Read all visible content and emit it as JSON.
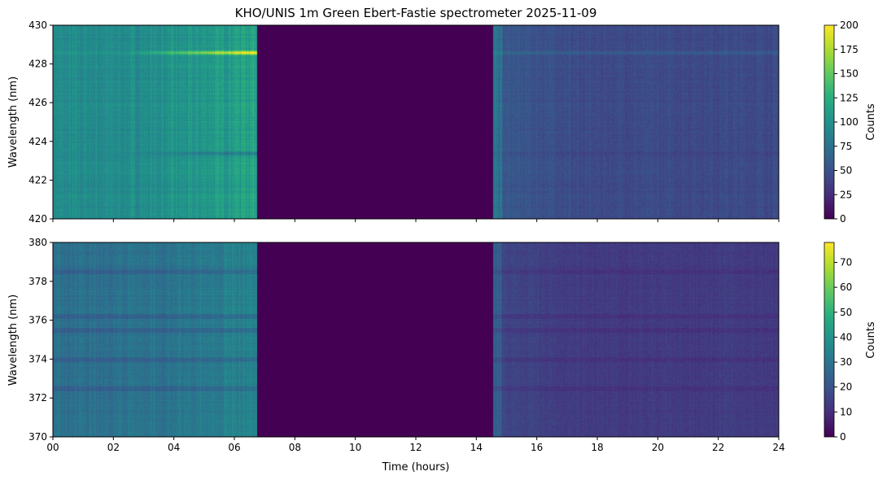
{
  "figure_title": "KHO/UNIS 1m Green Ebert-Fastie spectrometer 2025-11-09",
  "colormap": [
    "#440154",
    "#472d7b",
    "#3b528b",
    "#2c728e",
    "#21918c",
    "#28ae80",
    "#5ec962",
    "#addc30",
    "#fde725"
  ],
  "chart_data": [
    {
      "type": "heatmap",
      "title": "KHO/UNIS 1m Green Ebert-Fastie spectrometer 2025-11-09",
      "xlabel": "",
      "ylabel": "Wavelength (nm)",
      "xlim": [
        0,
        24
      ],
      "ylim": [
        420,
        430
      ],
      "x_ticks": [
        0,
        2,
        4,
        6,
        8,
        10,
        12,
        14,
        16,
        18,
        20,
        22,
        24
      ],
      "y_ticks": [
        420,
        422,
        424,
        426,
        428,
        430
      ],
      "y_tick_labels": [
        "420",
        "422",
        "424",
        "426",
        "428",
        "430"
      ],
      "colorbar": {
        "label": "Counts",
        "min": 0,
        "max": 200,
        "ticks": [
          0,
          25,
          50,
          75,
          100,
          125,
          150,
          175,
          200
        ]
      },
      "data_gap_hours": [
        6.75,
        14.55
      ],
      "baseline_counts": 100,
      "emission_lines": [
        {
          "wavelength_nm": 428.6,
          "peak_counts": 200
        },
        {
          "wavelength_nm": 423.4,
          "peak_counts": 60
        }
      ]
    },
    {
      "type": "heatmap",
      "title": "",
      "xlabel": "Time (hours)",
      "ylabel": "Wavelength (nm)",
      "xlim": [
        0,
        24
      ],
      "ylim": [
        370,
        380
      ],
      "x_ticks": [
        0,
        2,
        4,
        6,
        8,
        10,
        12,
        14,
        16,
        18,
        20,
        22,
        24
      ],
      "x_tick_labels": [
        "00",
        "02",
        "04",
        "06",
        "08",
        "10",
        "12",
        "14",
        "16",
        "18",
        "20",
        "22",
        "24"
      ],
      "y_ticks": [
        370,
        372,
        374,
        376,
        378,
        380
      ],
      "y_tick_labels": [
        "370",
        "372",
        "374",
        "376",
        "378",
        "380"
      ],
      "colorbar": {
        "label": "Counts",
        "min": 0,
        "max": 78,
        "ticks": [
          0,
          10,
          20,
          30,
          40,
          50,
          60,
          70
        ]
      },
      "data_gap_hours": [
        6.75,
        14.55
      ],
      "baseline_counts": 30,
      "absorption_bands_nm": [
        372.5,
        374.0,
        375.5,
        376.2,
        378.5
      ]
    }
  ]
}
